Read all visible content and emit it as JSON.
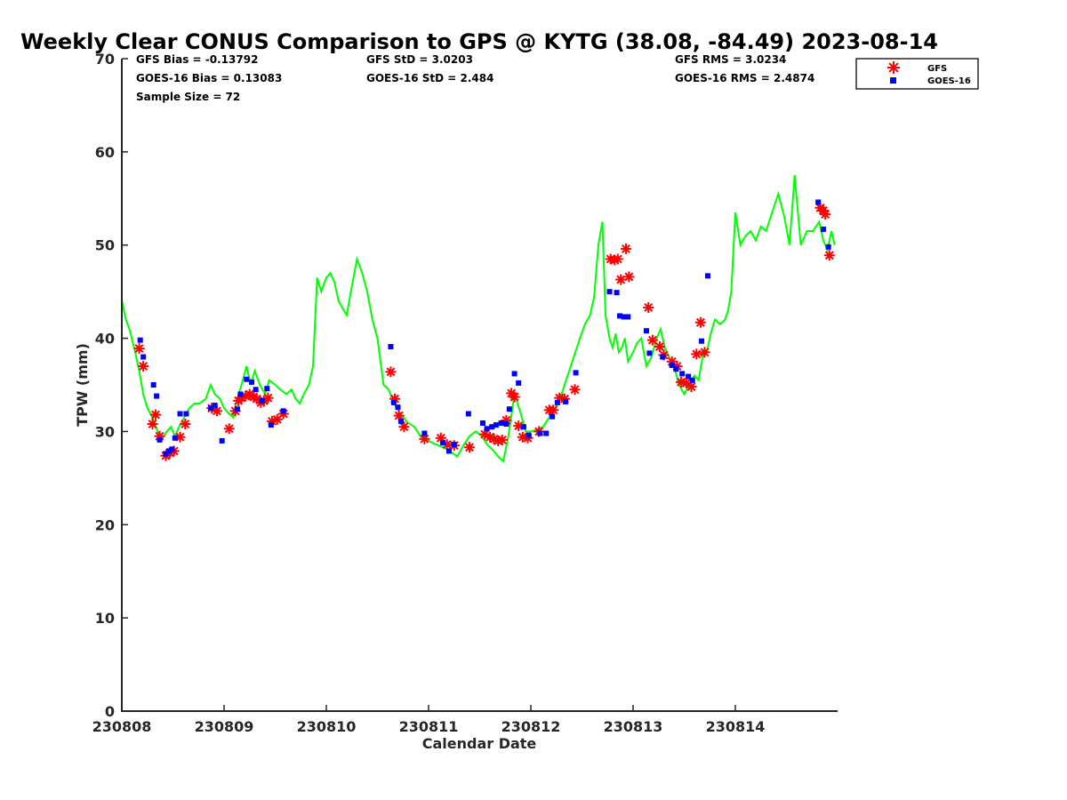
{
  "chart_data": {
    "type": "line",
    "title": "Weekly Clear CONUS Comparison to GPS @ KYTG (38.08, -84.49) 2023-08-14",
    "xlabel": "Calendar Date",
    "ylabel": "TPW (mm)",
    "xlim": [
      230808,
      230815
    ],
    "ylim": [
      0,
      70
    ],
    "xticks": [
      "230808",
      "230809",
      "230810",
      "230811",
      "230812",
      "230813",
      "230814"
    ],
    "yticks": [
      "0",
      "10",
      "20",
      "30",
      "40",
      "50",
      "60",
      "70"
    ],
    "grid": false,
    "legend_position": "top-right",
    "colors": {
      "gps": "#00ff00",
      "gfs": "#ff0000",
      "goes": "#0000ff"
    },
    "stats": {
      "gfs_bias": "GFS Bias = -0.13792",
      "goes_bias": "GOES-16 Bias = 0.13083",
      "sample_size": "Sample Size = 72",
      "gfs_std": "GFS StD = 3.0203",
      "goes_std": "GOES-16 StD = 2.484",
      "gfs_rms": "GFS RMS = 3.0234",
      "goes_rms": "GOES-16 RMS = 2.4874"
    },
    "series": [
      {
        "key": "gps",
        "marker": "line",
        "x": [
          230808.0,
          230808.04,
          230808.08,
          230808.13,
          230808.17,
          230808.21,
          230808.25,
          230808.3,
          230808.35,
          230808.4,
          230808.44,
          230808.48,
          230808.52,
          230808.56,
          230808.61,
          230808.66,
          230808.71,
          230808.76,
          230808.82,
          230808.87,
          230808.91,
          230808.96,
          230809.0,
          230809.04,
          230809.09,
          230809.13,
          230809.17,
          230809.22,
          230809.26,
          230809.3,
          230809.35,
          230809.4,
          230809.44,
          230809.5,
          230809.55,
          230809.61,
          230809.66,
          230809.7,
          230809.74,
          230809.78,
          230809.83,
          230809.87,
          230809.91,
          230809.95,
          230810.0,
          230810.04,
          230810.08,
          230810.12,
          230810.17,
          230810.2,
          230810.24,
          230810.3,
          230810.35,
          230810.4,
          230810.45,
          230810.5,
          230810.56,
          230810.61,
          230810.66,
          230810.72,
          230810.79,
          230810.86,
          230810.92,
          230811.0,
          230811.05,
          230811.1,
          230811.16,
          230811.22,
          230811.28,
          230811.34,
          230811.4,
          230811.46,
          230811.52,
          230811.58,
          230811.63,
          230811.68,
          230811.73,
          230811.78,
          230811.84,
          230811.9,
          230811.95,
          230812.0,
          230812.06,
          230812.12,
          230812.18,
          230812.24,
          230812.3,
          230812.36,
          230812.42,
          230812.48,
          230812.53,
          230812.58,
          230812.62,
          230812.66,
          230812.7,
          230812.73,
          230812.77,
          230812.8,
          230812.83,
          230812.86,
          230812.89,
          230812.92,
          230812.95,
          230813.0,
          230813.04,
          230813.08,
          230813.13,
          230813.18,
          230813.23,
          230813.27,
          230813.31,
          230813.35,
          230813.4,
          230813.45,
          230813.5,
          230813.55,
          230813.6,
          230813.64,
          230813.68,
          230813.72,
          230813.76,
          230813.8,
          230813.85,
          230813.9,
          230813.93,
          230813.96,
          230814.0,
          230814.05,
          230814.1,
          230814.15,
          230814.2,
          230814.25,
          230814.3,
          230814.36,
          230814.42,
          230814.48,
          230814.53,
          230814.58,
          230814.64,
          230814.7,
          230814.76,
          230814.82,
          230814.86,
          230814.9,
          230814.94,
          230814.97
        ],
        "y": [
          44.0,
          42.0,
          40.8,
          38.5,
          36.5,
          34.0,
          32.5,
          31.5,
          30.0,
          29.3,
          30.0,
          30.5,
          29.5,
          30.5,
          31.5,
          32.5,
          33.0,
          33.0,
          33.5,
          35.0,
          34.0,
          33.5,
          32.5,
          32.0,
          31.5,
          33.5,
          35.0,
          37.0,
          35.0,
          36.5,
          35.0,
          34.0,
          35.5,
          35.0,
          34.5,
          34.0,
          34.5,
          33.5,
          33.0,
          34.0,
          35.0,
          37.0,
          46.5,
          45.0,
          46.5,
          47.0,
          46.0,
          44.0,
          43.0,
          42.5,
          45.0,
          48.5,
          47.0,
          45.0,
          42.0,
          40.0,
          35.0,
          34.5,
          33.0,
          32.0,
          31.0,
          30.5,
          29.5,
          29.0,
          28.7,
          28.5,
          28.2,
          27.8,
          27.3,
          28.5,
          29.5,
          30.0,
          29.5,
          28.5,
          28.0,
          27.3,
          26.8,
          29.5,
          34.0,
          32.0,
          30.0,
          30.0,
          30.2,
          30.5,
          31.5,
          32.5,
          34.0,
          36.0,
          38.0,
          40.0,
          41.5,
          42.5,
          44.5,
          50.0,
          52.5,
          42.5,
          40.0,
          39.0,
          40.5,
          38.5,
          39.0,
          40.0,
          37.5,
          38.5,
          39.5,
          40.0,
          37.0,
          38.0,
          40.0,
          41.0,
          39.0,
          38.0,
          37.0,
          35.0,
          34.0,
          35.0,
          36.0,
          35.5,
          38.0,
          38.5,
          40.5,
          42.0,
          41.5,
          42.0,
          43.0,
          45.0,
          53.5,
          50.0,
          51.0,
          51.5,
          50.5,
          52.0,
          51.5,
          53.5,
          55.5,
          53.0,
          50.0,
          57.5,
          50.0,
          51.5,
          51.5,
          52.5,
          50.5,
          49.5,
          51.5,
          50.0
        ]
      },
      {
        "key": "gfs",
        "name": "GFS",
        "marker": "asterisk",
        "x": [
          230808.17,
          230808.21,
          230808.3,
          230808.33,
          230808.37,
          230808.43,
          230808.47,
          230808.51,
          230808.57,
          230808.62,
          230808.88,
          230808.93,
          230809.05,
          230809.11,
          230809.14,
          230809.17,
          230809.21,
          230809.25,
          230809.29,
          230809.32,
          230809.36,
          230809.39,
          230809.43,
          230809.47,
          230809.52,
          230809.58,
          230810.63,
          230810.67,
          230810.71,
          230810.76,
          230810.96,
          230811.12,
          230811.18,
          230811.25,
          230811.4,
          230811.55,
          230811.6,
          230811.64,
          230811.68,
          230811.72,
          230811.76,
          230811.81,
          230811.84,
          230811.88,
          230811.92,
          230811.97,
          230812.08,
          230812.18,
          230812.22,
          230812.28,
          230812.33,
          230812.43,
          230812.78,
          230812.82,
          230812.85,
          230812.88,
          230812.93,
          230812.96,
          230813.15,
          230813.19,
          230813.26,
          230813.3,
          230813.38,
          230813.43,
          230813.47,
          230813.52,
          230813.57,
          230813.62,
          230813.66,
          230813.7,
          230814.83,
          230814.86,
          230814.88,
          230814.92
        ],
        "y": [
          38.9,
          37.0,
          30.8,
          31.8,
          29.5,
          27.4,
          27.7,
          27.9,
          29.4,
          30.8,
          32.5,
          32.2,
          30.3,
          32.2,
          33.3,
          33.6,
          33.8,
          34.0,
          33.7,
          33.5,
          33.1,
          33.3,
          33.6,
          31.1,
          31.3,
          31.9,
          36.4,
          33.5,
          31.7,
          30.5,
          29.2,
          29.3,
          28.6,
          28.5,
          28.3,
          29.7,
          29.4,
          29.2,
          29.0,
          29.1,
          31.2,
          34.1,
          33.7,
          30.6,
          29.4,
          29.3,
          30.0,
          32.3,
          32.3,
          33.6,
          33.5,
          34.5,
          48.5,
          48.4,
          48.5,
          46.3,
          49.6,
          46.6,
          43.3,
          39.8,
          39.1,
          38.2,
          37.5,
          37.0,
          35.3,
          35.2,
          34.8,
          38.3,
          41.7,
          38.5,
          54.0,
          53.7,
          53.3,
          48.9
        ]
      },
      {
        "key": "goes",
        "name": "GOES-16",
        "marker": "square",
        "x": [
          230808.18,
          230808.21,
          230808.31,
          230808.34,
          230808.37,
          230808.43,
          230808.46,
          230808.49,
          230808.52,
          230808.57,
          230808.63,
          230808.87,
          230808.91,
          230808.98,
          230809.13,
          230809.16,
          230809.22,
          230809.27,
          230809.31,
          230809.37,
          230809.42,
          230809.46,
          230809.58,
          230810.63,
          230810.66,
          230810.7,
          230810.73,
          230810.96,
          230811.14,
          230811.2,
          230811.25,
          230811.39,
          230811.53,
          230811.57,
          230811.62,
          230811.66,
          230811.71,
          230811.76,
          230811.79,
          230811.84,
          230811.88,
          230811.93,
          230811.98,
          230812.09,
          230812.15,
          230812.21,
          230812.26,
          230812.34,
          230812.44,
          230812.77,
          230812.84,
          230812.87,
          230812.91,
          230812.95,
          230813.13,
          230813.16,
          230813.29,
          230813.38,
          230813.42,
          230813.48,
          230813.54,
          230813.58,
          230813.67,
          230813.73,
          230814.81,
          230814.86,
          230814.91
        ],
        "y": [
          39.8,
          38.0,
          35.0,
          33.8,
          29.1,
          27.6,
          27.9,
          28.1,
          29.3,
          31.9,
          31.9,
          32.5,
          32.8,
          29.0,
          32.4,
          34.0,
          35.6,
          35.3,
          34.5,
          33.3,
          34.6,
          30.7,
          32.2,
          39.1,
          33.1,
          32.6,
          31.1,
          29.8,
          28.8,
          27.9,
          28.6,
          31.9,
          30.9,
          30.3,
          30.5,
          30.7,
          30.9,
          30.8,
          32.4,
          36.2,
          35.2,
          30.5,
          29.6,
          29.8,
          29.8,
          31.6,
          33.1,
          33.2,
          36.3,
          45.0,
          44.9,
          42.4,
          42.3,
          42.3,
          40.8,
          38.4,
          38.0,
          37.1,
          36.7,
          36.2,
          35.9,
          35.5,
          39.7,
          46.7,
          54.6,
          51.7,
          49.8
        ]
      }
    ]
  }
}
